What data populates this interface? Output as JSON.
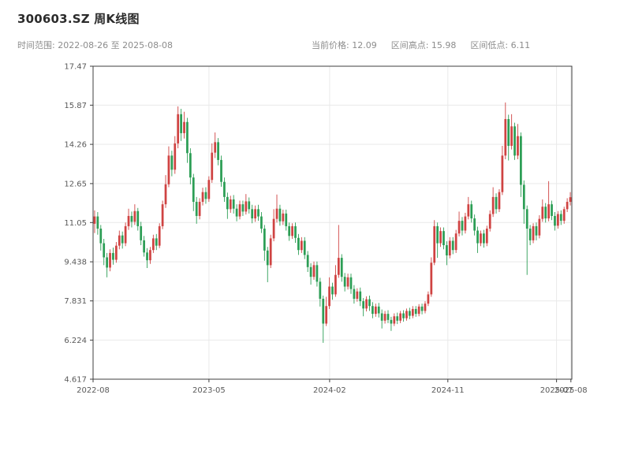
{
  "header": {
    "title": "300603.SZ 周K线图",
    "subtitle_left": "时间范围: 2022-08-26 至 2025-08-08",
    "stats_text": [
      "当前价格: 12.09",
      "区间高点: 15.98",
      "区间低点: 6.11"
    ]
  },
  "chart_data": {
    "type": "candlestick",
    "title": "300603.SZ 周K线图",
    "symbol": "300603.SZ",
    "interval": "weekly",
    "date_start": "2022-08-26",
    "date_end": "2025-08-08",
    "current_price": 12.09,
    "range_high": 15.98,
    "range_low": 6.11,
    "xlabel": "",
    "ylabel": "",
    "grid": true,
    "y_axis": {
      "min": 4.617,
      "max": 17.47,
      "ticks": [
        {
          "label": "17.47",
          "value": 17.47
        },
        {
          "label": "15.87",
          "value": 15.87
        },
        {
          "label": "14.26",
          "value": 14.26
        },
        {
          "label": "12.65",
          "value": 12.65
        },
        {
          "label": "11.05",
          "value": 11.05
        },
        {
          "label": "9.438",
          "value": 9.438
        },
        {
          "label": "7.831",
          "value": 7.831
        },
        {
          "label": "6.224",
          "value": 6.224
        },
        {
          "label": "4.617",
          "value": 4.617
        }
      ]
    },
    "x_axis": {
      "ticks": [
        {
          "label": "2022-08",
          "pos": 0.0
        },
        {
          "label": "2023-05",
          "pos": 0.242
        },
        {
          "label": "2024-02",
          "pos": 0.494
        },
        {
          "label": "2024-11",
          "pos": 0.741
        },
        {
          "label": "2025-07",
          "pos": 0.968
        },
        {
          "label": "2025-08",
          "pos": 0.998
        }
      ]
    },
    "colors": {
      "up": "#cf4342",
      "down": "#2c9e55",
      "grid": "#e9e9e9",
      "axis": "#3f3f3f",
      "tick_text": "#595959"
    },
    "candles": [
      [
        11.0,
        11.55,
        10.62,
        11.3
      ],
      [
        11.3,
        11.48,
        10.55,
        10.8
      ],
      [
        10.8,
        10.95,
        9.9,
        10.2
      ],
      [
        10.2,
        10.38,
        9.3,
        9.62
      ],
      [
        9.62,
        9.8,
        8.8,
        9.2
      ],
      [
        9.2,
        9.95,
        9.05,
        9.8
      ],
      [
        9.8,
        10.02,
        9.32,
        9.52
      ],
      [
        9.52,
        10.25,
        9.4,
        10.1
      ],
      [
        10.1,
        10.72,
        9.95,
        10.52
      ],
      [
        10.52,
        10.68,
        9.98,
        10.2
      ],
      [
        10.2,
        11.05,
        10.08,
        10.9
      ],
      [
        10.9,
        11.62,
        10.75,
        11.32
      ],
      [
        11.32,
        11.5,
        10.85,
        11.08
      ],
      [
        11.08,
        11.8,
        10.95,
        11.52
      ],
      [
        11.52,
        11.65,
        10.72,
        10.9
      ],
      [
        10.9,
        11.08,
        10.12,
        10.32
      ],
      [
        10.32,
        10.5,
        9.65,
        9.82
      ],
      [
        9.82,
        10.0,
        9.18,
        9.5
      ],
      [
        9.5,
        10.05,
        9.35,
        9.92
      ],
      [
        9.92,
        10.55,
        9.8,
        10.4
      ],
      [
        10.4,
        10.58,
        9.92,
        10.1
      ],
      [
        10.1,
        11.02,
        10.0,
        10.9
      ],
      [
        10.9,
        11.95,
        10.78,
        11.8
      ],
      [
        11.8,
        13.0,
        11.65,
        12.62
      ],
      [
        12.62,
        14.18,
        12.5,
        13.8
      ],
      [
        13.8,
        14.0,
        12.95,
        13.22
      ],
      [
        13.22,
        14.6,
        13.05,
        14.3
      ],
      [
        14.3,
        15.82,
        14.1,
        15.5
      ],
      [
        15.5,
        15.72,
        14.4,
        14.72
      ],
      [
        14.72,
        15.6,
        14.5,
        15.18
      ],
      [
        15.18,
        15.35,
        13.5,
        13.9
      ],
      [
        13.9,
        14.1,
        12.62,
        12.9
      ],
      [
        12.9,
        13.05,
        11.52,
        11.9
      ],
      [
        11.9,
        12.1,
        11.0,
        11.32
      ],
      [
        11.32,
        12.05,
        11.18,
        11.9
      ],
      [
        11.9,
        12.48,
        11.75,
        12.3
      ],
      [
        12.3,
        12.5,
        11.82,
        12.02
      ],
      [
        12.02,
        12.95,
        11.9,
        12.8
      ],
      [
        12.8,
        14.3,
        12.68,
        13.92
      ],
      [
        13.92,
        14.75,
        13.7,
        14.35
      ],
      [
        14.35,
        14.52,
        13.4,
        13.62
      ],
      [
        13.62,
        13.8,
        12.52,
        12.72
      ],
      [
        12.72,
        12.9,
        11.9,
        12.1
      ],
      [
        12.1,
        12.28,
        11.2,
        11.6
      ],
      [
        11.6,
        12.15,
        11.45,
        12.0
      ],
      [
        12.0,
        12.18,
        11.42,
        11.62
      ],
      [
        11.62,
        11.8,
        11.1,
        11.3
      ],
      [
        11.3,
        11.95,
        11.18,
        11.8
      ],
      [
        11.8,
        11.95,
        11.32,
        11.5
      ],
      [
        11.5,
        12.22,
        11.38,
        11.92
      ],
      [
        11.92,
        12.08,
        11.42,
        11.6
      ],
      [
        11.6,
        11.78,
        11.02,
        11.22
      ],
      [
        11.22,
        11.75,
        11.08,
        11.6
      ],
      [
        11.6,
        11.78,
        11.12,
        11.3
      ],
      [
        11.3,
        11.48,
        10.62,
        10.8
      ],
      [
        10.8,
        10.95,
        9.48,
        9.9
      ],
      [
        9.9,
        10.05,
        8.6,
        9.3
      ],
      [
        9.3,
        10.55,
        9.18,
        10.4
      ],
      [
        10.4,
        11.6,
        10.28,
        11.2
      ],
      [
        11.2,
        12.2,
        11.05,
        11.62
      ],
      [
        11.62,
        11.78,
        10.92,
        11.1
      ],
      [
        11.1,
        11.58,
        10.95,
        11.42
      ],
      [
        11.42,
        11.58,
        10.72,
        10.9
      ],
      [
        10.9,
        11.05,
        10.3,
        10.5
      ],
      [
        10.5,
        11.02,
        10.38,
        10.9
      ],
      [
        10.9,
        11.05,
        10.22,
        10.42
      ],
      [
        10.42,
        10.58,
        9.72,
        9.92
      ],
      [
        9.92,
        10.45,
        9.8,
        10.3
      ],
      [
        10.3,
        10.45,
        9.55,
        9.72
      ],
      [
        9.72,
        9.88,
        9.02,
        9.22
      ],
      [
        9.22,
        9.38,
        8.5,
        8.82
      ],
      [
        8.82,
        9.45,
        8.7,
        9.3
      ],
      [
        9.3,
        9.45,
        8.42,
        8.62
      ],
      [
        8.62,
        8.78,
        7.6,
        7.92
      ],
      [
        7.92,
        8.05,
        6.11,
        6.9
      ],
      [
        6.9,
        8.0,
        6.8,
        7.62
      ],
      [
        7.62,
        8.8,
        7.5,
        8.42
      ],
      [
        8.42,
        8.58,
        7.88,
        8.1
      ],
      [
        8.1,
        9.3,
        8.0,
        8.9
      ],
      [
        8.9,
        10.95,
        8.78,
        9.6
      ],
      [
        9.6,
        9.75,
        8.62,
        8.82
      ],
      [
        8.82,
        8.98,
        8.22,
        8.42
      ],
      [
        8.42,
        8.95,
        8.3,
        8.8
      ],
      [
        8.8,
        8.95,
        8.12,
        8.32
      ],
      [
        8.32,
        8.48,
        7.72,
        7.92
      ],
      [
        7.92,
        8.35,
        7.8,
        8.22
      ],
      [
        8.22,
        8.38,
        7.62,
        7.82
      ],
      [
        7.82,
        7.95,
        7.2,
        7.52
      ],
      [
        7.52,
        8.02,
        7.4,
        7.9
      ],
      [
        7.9,
        8.05,
        7.42,
        7.62
      ],
      [
        7.62,
        7.78,
        7.12,
        7.3
      ],
      [
        7.3,
        7.72,
        7.18,
        7.6
      ],
      [
        7.6,
        7.75,
        7.15,
        7.32
      ],
      [
        7.32,
        7.48,
        6.7,
        7.02
      ],
      [
        7.02,
        7.42,
        6.9,
        7.3
      ],
      [
        7.3,
        7.45,
        6.92,
        7.05
      ],
      [
        7.05,
        7.18,
        6.6,
        6.9
      ],
      [
        6.9,
        7.32,
        6.8,
        7.2
      ],
      [
        7.2,
        7.35,
        6.88,
        7.02
      ],
      [
        7.02,
        7.42,
        6.92,
        7.32
      ],
      [
        7.32,
        7.45,
        6.98,
        7.12
      ],
      [
        7.12,
        7.52,
        7.02,
        7.42
      ],
      [
        7.42,
        7.55,
        7.08,
        7.22
      ],
      [
        7.22,
        7.62,
        7.12,
        7.5
      ],
      [
        7.5,
        7.62,
        7.18,
        7.3
      ],
      [
        7.3,
        7.7,
        7.2,
        7.6
      ],
      [
        7.6,
        7.72,
        7.28,
        7.42
      ],
      [
        7.42,
        7.82,
        7.32,
        7.72
      ],
      [
        7.72,
        8.22,
        7.62,
        8.1
      ],
      [
        8.1,
        9.62,
        8.0,
        9.4
      ],
      [
        9.4,
        11.15,
        9.3,
        10.9
      ],
      [
        10.9,
        11.05,
        9.6,
        10.2
      ],
      [
        10.2,
        10.85,
        10.05,
        10.7
      ],
      [
        10.7,
        10.85,
        9.95,
        10.12
      ],
      [
        10.12,
        10.28,
        9.3,
        9.7
      ],
      [
        9.7,
        10.45,
        9.58,
        10.3
      ],
      [
        10.3,
        10.45,
        9.75,
        9.92
      ],
      [
        9.92,
        10.75,
        9.8,
        10.6
      ],
      [
        10.6,
        11.5,
        10.48,
        11.12
      ],
      [
        11.12,
        11.28,
        10.52,
        10.72
      ],
      [
        10.72,
        11.45,
        10.6,
        11.3
      ],
      [
        11.3,
        12.1,
        11.18,
        11.8
      ],
      [
        11.8,
        11.95,
        11.05,
        11.22
      ],
      [
        11.22,
        11.38,
        10.52,
        10.72
      ],
      [
        10.72,
        10.88,
        9.8,
        10.2
      ],
      [
        10.2,
        10.72,
        10.08,
        10.6
      ],
      [
        10.6,
        10.75,
        10.02,
        10.2
      ],
      [
        10.2,
        10.92,
        10.08,
        10.8
      ],
      [
        10.8,
        11.55,
        10.68,
        11.4
      ],
      [
        11.4,
        12.5,
        11.28,
        12.1
      ],
      [
        12.1,
        12.25,
        11.42,
        11.6
      ],
      [
        11.6,
        12.42,
        11.48,
        12.3
      ],
      [
        12.3,
        14.2,
        12.18,
        13.8
      ],
      [
        13.8,
        15.98,
        13.65,
        15.3
      ],
      [
        15.3,
        15.48,
        13.6,
        14.2
      ],
      [
        14.2,
        15.5,
        14.05,
        15.0
      ],
      [
        15.0,
        15.15,
        13.62,
        13.8
      ],
      [
        13.8,
        15.1,
        13.65,
        14.6
      ],
      [
        14.6,
        14.75,
        12.1,
        12.6
      ],
      [
        12.6,
        12.78,
        11.0,
        11.6
      ],
      [
        11.6,
        11.75,
        8.9,
        10.8
      ],
      [
        10.8,
        10.95,
        10.12,
        10.32
      ],
      [
        10.32,
        11.02,
        10.2,
        10.9
      ],
      [
        10.9,
        11.05,
        10.32,
        10.52
      ],
      [
        10.52,
        11.35,
        10.4,
        11.2
      ],
      [
        11.2,
        12.0,
        11.08,
        11.7
      ],
      [
        11.7,
        11.85,
        11.05,
        11.22
      ],
      [
        11.22,
        12.75,
        11.1,
        11.8
      ],
      [
        11.8,
        11.95,
        11.15,
        11.32
      ],
      [
        11.32,
        11.48,
        10.72,
        10.92
      ],
      [
        10.92,
        11.52,
        10.8,
        11.4
      ],
      [
        11.4,
        11.55,
        10.95,
        11.12
      ],
      [
        11.12,
        11.7,
        11.0,
        11.6
      ],
      [
        11.6,
        12.05,
        11.48,
        11.9
      ],
      [
        11.9,
        12.3,
        11.75,
        12.09
      ]
    ]
  }
}
